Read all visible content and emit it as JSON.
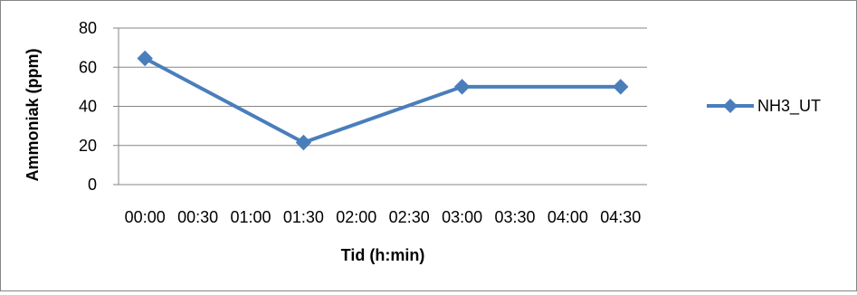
{
  "chart_data": {
    "type": "line",
    "title": "",
    "xlabel": "Tid (h:min)",
    "ylabel": "Ammoniak (ppm)",
    "ylim": [
      0,
      80
    ],
    "yticks": [
      "0",
      "20",
      "40",
      "60",
      "80"
    ],
    "x_tick_labels": [
      "00:00",
      "00:30",
      "01:00",
      "01:30",
      "02:00",
      "02:30",
      "03:00",
      "03:30",
      "04:00",
      "04:30"
    ],
    "grid": true,
    "legend_position": "right",
    "series": [
      {
        "name": "NH3_UT",
        "color": "#4a7ebb",
        "points": [
          {
            "x": "00:00",
            "y": 64.5
          },
          {
            "x": "01:30",
            "y": 21.5
          },
          {
            "x": "03:00",
            "y": 50
          },
          {
            "x": "04:30",
            "y": 50
          }
        ]
      }
    ]
  }
}
